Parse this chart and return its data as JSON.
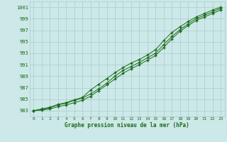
{
  "x": [
    0,
    1,
    2,
    3,
    4,
    5,
    6,
    7,
    8,
    9,
    10,
    11,
    12,
    13,
    14,
    15,
    16,
    17,
    18,
    19,
    20,
    21,
    22,
    23
  ],
  "line1": [
    983.0,
    983.3,
    983.6,
    984.1,
    984.4,
    984.9,
    985.3,
    986.6,
    987.6,
    988.6,
    989.6,
    990.5,
    991.3,
    991.9,
    992.7,
    993.6,
    995.2,
    996.6,
    997.6,
    998.5,
    999.3,
    999.9,
    1000.5,
    1001.0
  ],
  "line2": [
    983.0,
    983.2,
    983.5,
    984.0,
    984.3,
    984.8,
    985.2,
    985.9,
    986.8,
    987.8,
    989.0,
    990.0,
    990.7,
    991.4,
    992.2,
    993.0,
    994.5,
    995.9,
    997.1,
    998.1,
    999.0,
    999.6,
    1000.2,
    1000.8
  ],
  "line3": [
    983.0,
    983.1,
    983.3,
    983.7,
    984.0,
    984.4,
    984.8,
    985.5,
    986.5,
    987.5,
    988.5,
    989.5,
    990.3,
    991.0,
    991.8,
    992.6,
    994.0,
    995.5,
    996.8,
    997.8,
    998.7,
    999.3,
    999.9,
    1000.5
  ],
  "line_color": "#1a6b1a",
  "bg_color": "#cde8e8",
  "grid_color": "#a8cccc",
  "text_color": "#1a6b1a",
  "xlabel": "Graphe pression niveau de la mer (hPa)",
  "ylim": [
    982,
    1002
  ],
  "yticks": [
    983,
    985,
    987,
    989,
    991,
    993,
    995,
    997,
    999,
    1001
  ],
  "xlim": [
    -0.5,
    23.5
  ],
  "xticks": [
    0,
    1,
    2,
    3,
    4,
    5,
    6,
    7,
    8,
    9,
    10,
    11,
    12,
    13,
    14,
    15,
    16,
    17,
    18,
    19,
    20,
    21,
    22,
    23
  ]
}
